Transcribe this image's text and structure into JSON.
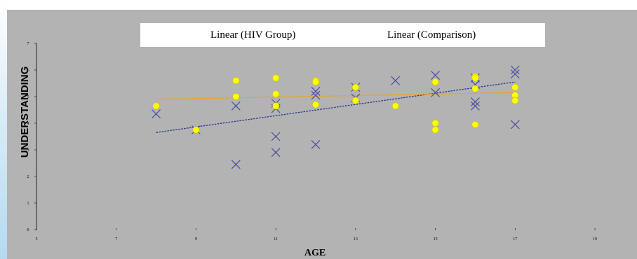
{
  "chart_data": {
    "type": "scatter",
    "title": "",
    "xlabel": "AGE",
    "ylabel": "UNDERSTANDING",
    "xlim": [
      5,
      19
    ],
    "ylim": [
      0,
      7
    ],
    "x_ticks": [
      5,
      7,
      9,
      11,
      13,
      15,
      17,
      19
    ],
    "y_ticks": [
      0,
      1,
      2,
      3,
      4,
      5,
      6,
      7
    ],
    "grid": false,
    "legend_position": "top",
    "series": [
      {
        "name": "HIV Group",
        "marker": "x",
        "color": "#4a4f9e",
        "points": [
          [
            8,
            4.35
          ],
          [
            9,
            3.75
          ],
          [
            10,
            4.65
          ],
          [
            10,
            2.45
          ],
          [
            11,
            4.75
          ],
          [
            11,
            4.55
          ],
          [
            11,
            3.5
          ],
          [
            11,
            2.9
          ],
          [
            12,
            5.2
          ],
          [
            12,
            5.05
          ],
          [
            12,
            3.2
          ],
          [
            13,
            5.35
          ],
          [
            13,
            4.95
          ],
          [
            14,
            5.6
          ],
          [
            15,
            5.8
          ],
          [
            15,
            5.15
          ],
          [
            16,
            5.7
          ],
          [
            16,
            5.45
          ],
          [
            16,
            4.8
          ],
          [
            16,
            4.65
          ],
          [
            17,
            6.0
          ],
          [
            17,
            5.85
          ],
          [
            17,
            3.95
          ]
        ]
      },
      {
        "name": "Comparison",
        "marker": "circle",
        "color": "#ffff00",
        "points": [
          [
            8,
            4.65
          ],
          [
            9,
            3.75
          ],
          [
            10,
            5.6
          ],
          [
            10,
            5.0
          ],
          [
            11,
            5.7
          ],
          [
            11,
            5.1
          ],
          [
            11,
            4.65
          ],
          [
            12,
            5.6
          ],
          [
            12,
            5.55
          ],
          [
            12,
            4.7
          ],
          [
            13,
            5.35
          ],
          [
            13,
            4.85
          ],
          [
            14,
            4.65
          ],
          [
            15,
            5.55
          ],
          [
            15,
            4.0
          ],
          [
            15,
            3.75
          ],
          [
            16,
            5.75
          ],
          [
            16,
            5.7
          ],
          [
            16,
            5.3
          ],
          [
            16,
            3.95
          ],
          [
            17,
            5.35
          ],
          [
            17,
            5.05
          ],
          [
            17,
            4.85
          ]
        ]
      }
    ],
    "trendlines": [
      {
        "name": "Linear (HIV Group)",
        "color": "#2b2f8e",
        "style": "dashed",
        "x": [
          8,
          17
        ],
        "y": [
          3.65,
          5.55
        ]
      },
      {
        "name": "Linear (Comparison)",
        "color": "#e6a52a",
        "style": "solid",
        "x": [
          8,
          17
        ],
        "y": [
          4.9,
          5.15
        ]
      }
    ],
    "legend": [
      "Linear (HIV Group)",
      "Linear (Comparison)"
    ]
  }
}
